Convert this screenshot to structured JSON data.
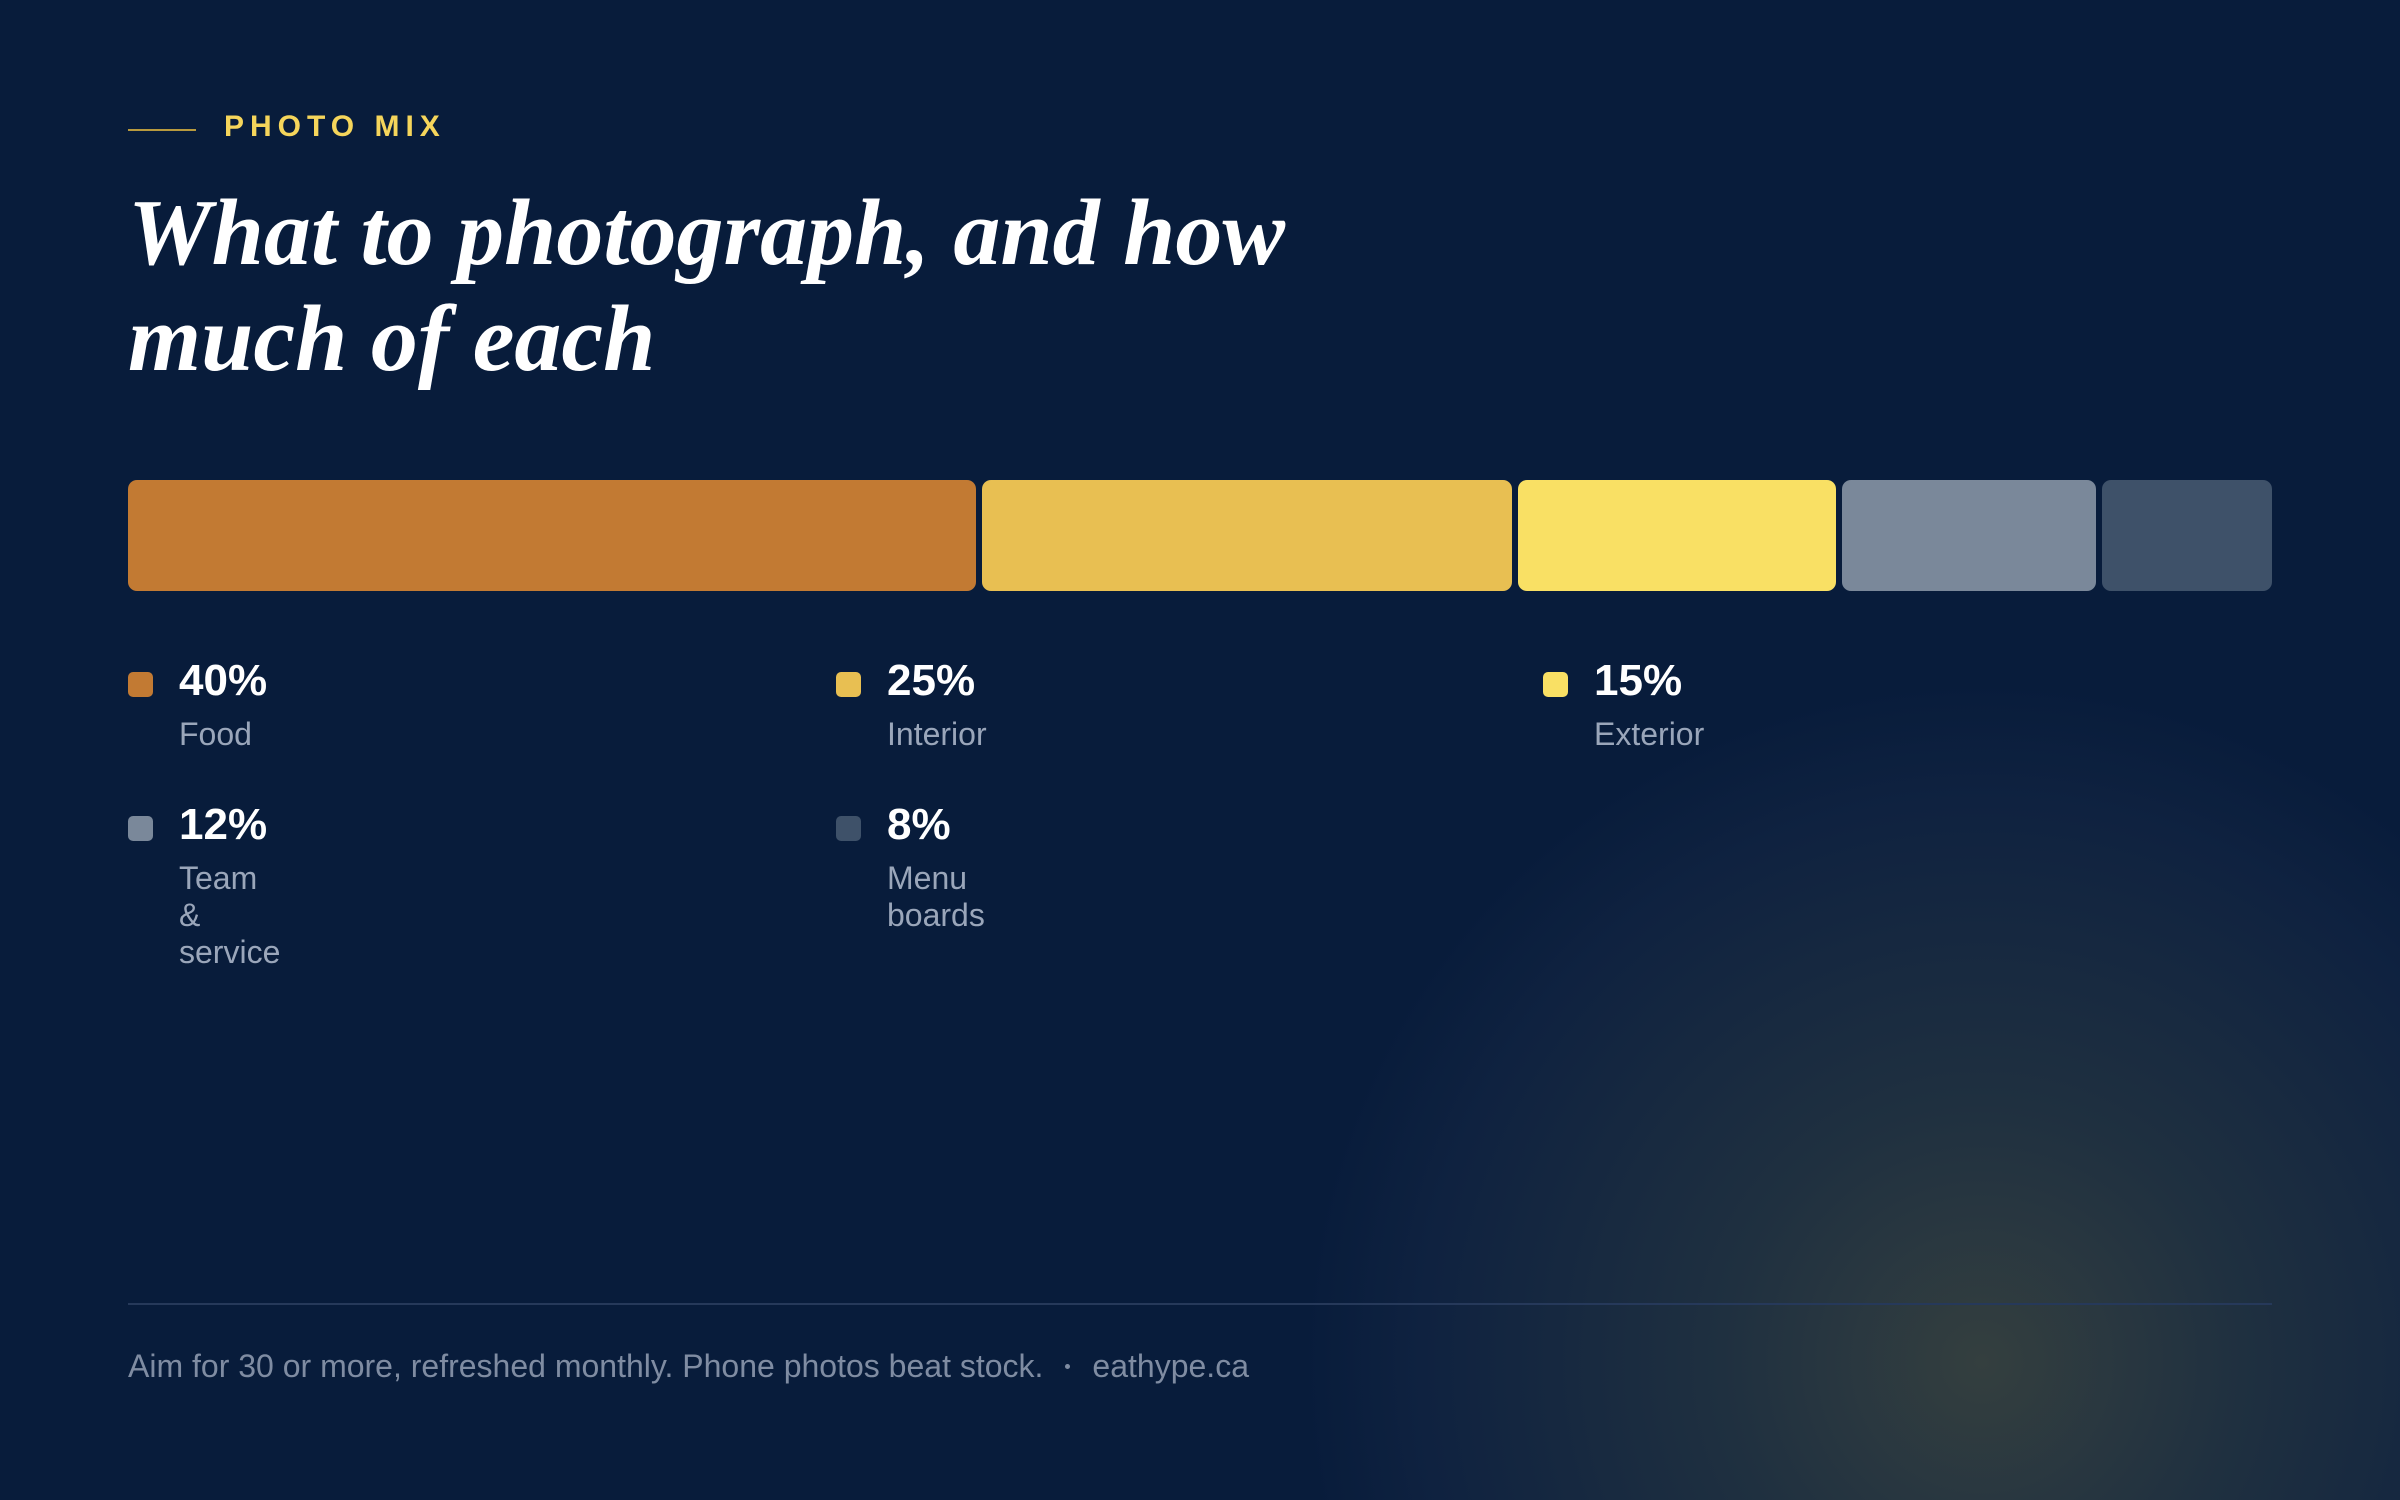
{
  "eyebrow": "PHOTO MIX",
  "chart_data": {
    "type": "stacked-bar",
    "title": "What to photograph, and how much of each",
    "categories": [
      "Food",
      "Interior",
      "Exterior",
      "Team & service",
      "Menu boards"
    ],
    "values": [
      40,
      25,
      15,
      12,
      8
    ],
    "value_labels": [
      "40%",
      "25%",
      "15%",
      "12%",
      "8%"
    ],
    "colors": [
      "#c27a33",
      "#e8bf52",
      "#f9e064",
      "#7a889a",
      "#3e5169"
    ]
  },
  "footer": {
    "note": "Aim for 30 or more, refreshed monthly. Phone photos beat stock.",
    "site": "eathype.ca"
  }
}
